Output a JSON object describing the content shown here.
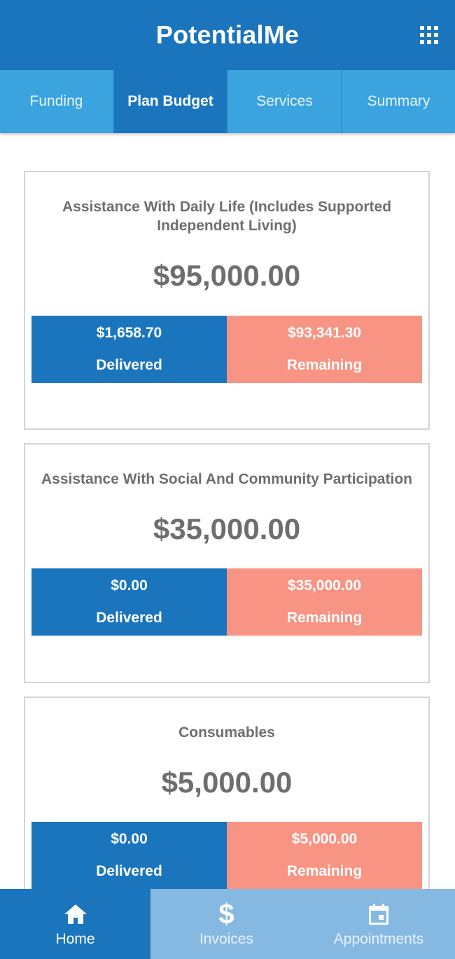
{
  "header": {
    "title": "PotentialMe",
    "menu_icon": "grid-icon"
  },
  "tabs": [
    {
      "label": "Funding",
      "active": false
    },
    {
      "label": "Plan Budget",
      "active": true
    },
    {
      "label": "Services",
      "active": false
    },
    {
      "label": "Summary",
      "active": false
    }
  ],
  "cards": [
    {
      "title": "Assistance With Daily Life (Includes Supported Independent Living)",
      "amount": "$95,000.00",
      "delivered_value": "$1,658.70",
      "delivered_label": "Delivered",
      "remaining_value": "$93,341.30",
      "remaining_label": "Remaining"
    },
    {
      "title": "Assistance With Social And Community Participation",
      "amount": "$35,000.00",
      "delivered_value": "$0.00",
      "delivered_label": "Delivered",
      "remaining_value": "$35,000.00",
      "remaining_label": "Remaining"
    },
    {
      "title": "Consumables",
      "amount": "$5,000.00",
      "delivered_value": "$0.00",
      "delivered_label": "Delivered",
      "remaining_value": "$5,000.00",
      "remaining_label": "Remaining"
    }
  ],
  "bottom_nav": [
    {
      "label": "Home",
      "icon": "home-icon",
      "active": true
    },
    {
      "label": "Invoices",
      "icon": "dollar-icon",
      "glyph": "$",
      "active": false
    },
    {
      "label": "Appointments",
      "icon": "calendar-icon",
      "active": false
    }
  ],
  "colors": {
    "primary": "#1b75bc",
    "tab_bar": "#3ba3de",
    "remaining": "#f89483",
    "nav_inactive": "#86b9e2",
    "text_gray": "#6e6e6e"
  }
}
